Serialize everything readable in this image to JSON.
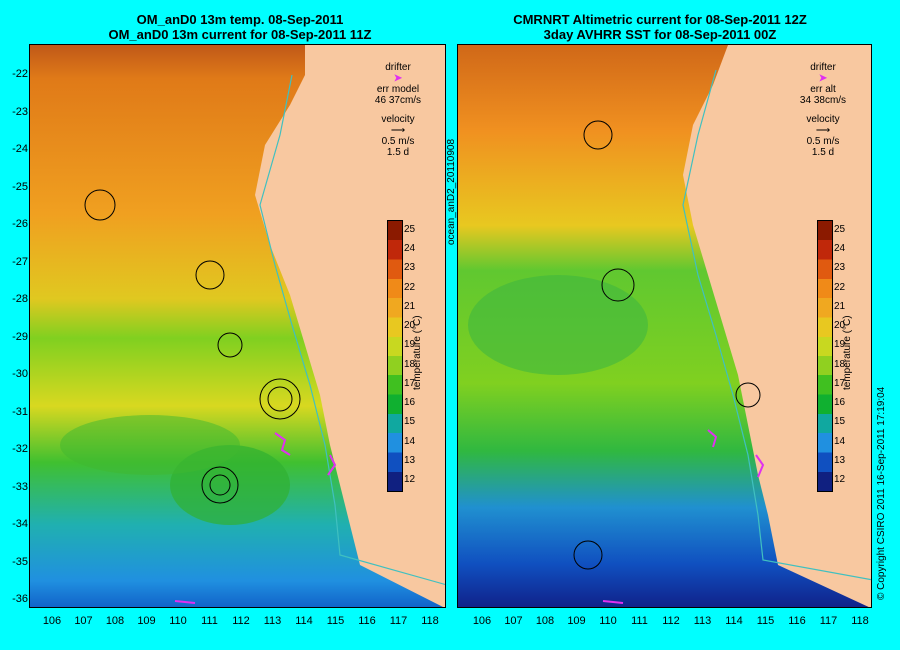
{
  "left_panel": {
    "title_line1": "OM_anD0 13m temp. 08-Sep-2011",
    "title_line2": "OM_anD0 13m current for 08-Sep-2011 11Z",
    "legend": {
      "drifter": "drifter",
      "err_label": "err model",
      "err_value": "46 37cm/s",
      "velocity": "velocity",
      "speed": "0.5 m/s",
      "days": "1.5 d"
    }
  },
  "right_panel": {
    "title_line1": "CMRNRT Altimetric current for 08-Sep-2011 12Z",
    "title_line2": "3day AVHRR SST for 08-Sep-2011 00Z",
    "legend": {
      "drifter": "drifter",
      "err_label": "err alt",
      "err_value": "34 38cm/s",
      "velocity": "velocity",
      "speed": "0.5 m/s",
      "days": "1.5 d"
    }
  },
  "colorbar": {
    "label": "temperature (°C)",
    "ticks": [
      "25",
      "24",
      "23",
      "22",
      "21",
      "20",
      "19",
      "18",
      "17",
      "16",
      "15",
      "14",
      "13",
      "12"
    ],
    "colors": [
      "#8b1a00",
      "#c0280a",
      "#e05a10",
      "#f08a18",
      "#f0a820",
      "#e8c820",
      "#c8d820",
      "#90d020",
      "#40c020",
      "#10b030",
      "#10a8a0",
      "#2090e0",
      "#1050c0",
      "#102080"
    ]
  },
  "y_axis": [
    "-22",
    "-23",
    "-24",
    "-25",
    "-26",
    "-27",
    "-28",
    "-29",
    "-30",
    "-31",
    "-32",
    "-33",
    "-34",
    "-35",
    "-36"
  ],
  "x_axis": [
    "106",
    "107",
    "108",
    "109",
    "110",
    "111",
    "112",
    "113",
    "114",
    "115",
    "116",
    "117",
    "118"
  ],
  "side_label": "ocean_anD2_20110908",
  "copyright": "© Copyright CSIRO 2011   16-Sep-2011 17:19:04",
  "colors": {
    "background": "#00ffff",
    "land": "#f8c8a0",
    "drifter": "#e030f0"
  }
}
